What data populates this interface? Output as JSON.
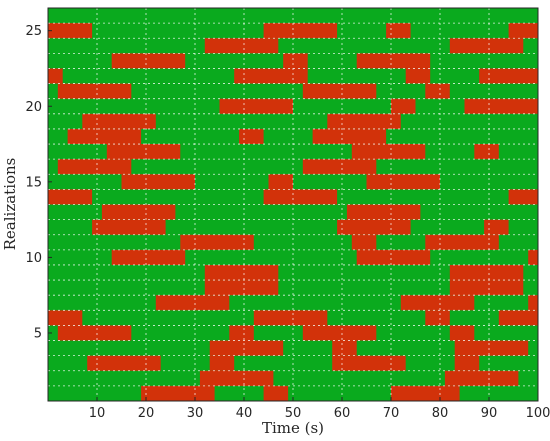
{
  "chart_data": {
    "type": "heatmap",
    "title": "",
    "xlabel": "Time (s)",
    "ylabel": "Realizations",
    "xlim": [
      0,
      100
    ],
    "ylim": [
      0.5,
      26.5
    ],
    "xticks": [
      10,
      20,
      30,
      40,
      50,
      60,
      70,
      80,
      90,
      100
    ],
    "yticks": [
      5,
      10,
      15,
      20,
      25
    ],
    "grid": true,
    "colors": {
      "state_on": "#d2320a",
      "state_off": "#0aaa1e",
      "axis": "#262626"
    },
    "series_description_states": [
      "state_on",
      "state_off"
    ],
    "rows": [
      {
        "realization": 1,
        "state_on_intervals": [
          [
            19,
            34
          ],
          [
            44,
            49
          ],
          [
            70,
            84
          ]
        ]
      },
      {
        "realization": 2,
        "state_on_intervals": [
          [
            31,
            46
          ],
          [
            81,
            96
          ]
        ]
      },
      {
        "realization": 3,
        "state_on_intervals": [
          [
            8,
            23
          ],
          [
            33,
            38
          ],
          [
            58,
            73
          ],
          [
            83,
            88
          ]
        ]
      },
      {
        "realization": 4,
        "state_on_intervals": [
          [
            33,
            48
          ],
          [
            58,
            63
          ],
          [
            83,
            98
          ]
        ]
      },
      {
        "realization": 5,
        "state_on_intervals": [
          [
            2,
            17
          ],
          [
            37,
            42
          ],
          [
            52,
            67
          ],
          [
            82,
            87
          ]
        ]
      },
      {
        "realization": 6,
        "state_on_intervals": [
          [
            0,
            7
          ],
          [
            42,
            57
          ],
          [
            77,
            82
          ],
          [
            92,
            100
          ]
        ]
      },
      {
        "realization": 7,
        "state_on_intervals": [
          [
            22,
            37
          ],
          [
            72,
            87
          ],
          [
            98,
            100
          ]
        ]
      },
      {
        "realization": 8,
        "state_on_intervals": [
          [
            32,
            47
          ],
          [
            82,
            97
          ]
        ]
      },
      {
        "realization": 9,
        "state_on_intervals": [
          [
            32,
            47
          ],
          [
            82,
            97
          ]
        ]
      },
      {
        "realization": 10,
        "state_on_intervals": [
          [
            13,
            28
          ],
          [
            63,
            78
          ],
          [
            98,
            100
          ]
        ]
      },
      {
        "realization": 11,
        "state_on_intervals": [
          [
            27,
            42
          ],
          [
            62,
            67
          ],
          [
            77,
            92
          ]
        ]
      },
      {
        "realization": 12,
        "state_on_intervals": [
          [
            9,
            24
          ],
          [
            59,
            74
          ],
          [
            89,
            94
          ]
        ]
      },
      {
        "realization": 13,
        "state_on_intervals": [
          [
            11,
            26
          ],
          [
            61,
            76
          ]
        ]
      },
      {
        "realization": 14,
        "state_on_intervals": [
          [
            0,
            9
          ],
          [
            44,
            59
          ],
          [
            94,
            100
          ]
        ]
      },
      {
        "realization": 15,
        "state_on_intervals": [
          [
            15,
            30
          ],
          [
            45,
            50
          ],
          [
            65,
            80
          ]
        ]
      },
      {
        "realization": 16,
        "state_on_intervals": [
          [
            2,
            17
          ],
          [
            52,
            67
          ]
        ]
      },
      {
        "realization": 17,
        "state_on_intervals": [
          [
            12,
            27
          ],
          [
            62,
            77
          ],
          [
            87,
            92
          ]
        ]
      },
      {
        "realization": 18,
        "state_on_intervals": [
          [
            4,
            19
          ],
          [
            39,
            44
          ],
          [
            54,
            69
          ]
        ]
      },
      {
        "realization": 19,
        "state_on_intervals": [
          [
            7,
            22
          ],
          [
            57,
            72
          ]
        ]
      },
      {
        "realization": 20,
        "state_on_intervals": [
          [
            35,
            50
          ],
          [
            70,
            75
          ],
          [
            85,
            100
          ]
        ]
      },
      {
        "realization": 21,
        "state_on_intervals": [
          [
            2,
            17
          ],
          [
            52,
            67
          ],
          [
            77,
            82
          ]
        ]
      },
      {
        "realization": 22,
        "state_on_intervals": [
          [
            0,
            3
          ],
          [
            38,
            53
          ],
          [
            73,
            78
          ],
          [
            88,
            100
          ]
        ]
      },
      {
        "realization": 23,
        "state_on_intervals": [
          [
            13,
            28
          ],
          [
            48,
            53
          ],
          [
            63,
            78
          ]
        ]
      },
      {
        "realization": 24,
        "state_on_intervals": [
          [
            32,
            47
          ],
          [
            82,
            97
          ]
        ]
      },
      {
        "realization": 25,
        "state_on_intervals": [
          [
            0,
            9
          ],
          [
            44,
            59
          ],
          [
            69,
            74
          ],
          [
            94,
            100
          ]
        ]
      }
    ]
  }
}
